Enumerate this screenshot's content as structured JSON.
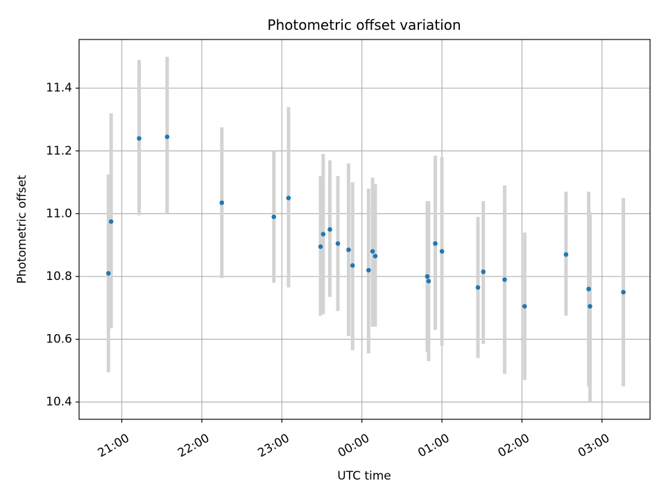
{
  "chart_data": {
    "type": "scatter",
    "title": "Photometric offset variation",
    "xlabel": "UTC time",
    "ylabel": "Photometric offset",
    "x_axis_kind": "time",
    "xlim": [
      "2000-01-01T20:28:00",
      "2000-01-02T03:36:00"
    ],
    "ylim": [
      10.345,
      11.555
    ],
    "x_ticks": [
      {
        "time": "2000-01-01T21:00:00",
        "label": "21:00"
      },
      {
        "time": "2000-01-01T22:00:00",
        "label": "22:00"
      },
      {
        "time": "2000-01-01T23:00:00",
        "label": "23:00"
      },
      {
        "time": "2000-01-02T00:00:00",
        "label": "00:00"
      },
      {
        "time": "2000-01-02T01:00:00",
        "label": "01:00"
      },
      {
        "time": "2000-01-02T02:00:00",
        "label": "02:00"
      },
      {
        "time": "2000-01-02T03:00:00",
        "label": "03:00"
      }
    ],
    "y_ticks": [
      10.4,
      10.6,
      10.8,
      11.0,
      11.2,
      11.4
    ],
    "y_tick_labels": [
      "10.4",
      "10.6",
      "10.8",
      "11.0",
      "11.2",
      "11.4"
    ],
    "grid": true,
    "marker_color": "#1f77b4",
    "errorbar_color": "#d3d3d3",
    "points": [
      {
        "x": "2000-01-01T20:50:00",
        "y": 10.81,
        "ylo": 10.495,
        "yhi": 11.125
      },
      {
        "x": "2000-01-01T20:52:00",
        "y": 10.975,
        "ylo": 10.635,
        "yhi": 11.32
      },
      {
        "x": "2000-01-01T21:13:00",
        "y": 11.24,
        "ylo": 10.995,
        "yhi": 11.49
      },
      {
        "x": "2000-01-01T21:34:00",
        "y": 11.245,
        "ylo": 11.0,
        "yhi": 11.5
      },
      {
        "x": "2000-01-01T22:15:00",
        "y": 11.035,
        "ylo": 10.795,
        "yhi": 11.275
      },
      {
        "x": "2000-01-01T22:54:00",
        "y": 10.99,
        "ylo": 10.78,
        "yhi": 11.2
      },
      {
        "x": "2000-01-01T23:05:00",
        "y": 11.05,
        "ylo": 10.765,
        "yhi": 11.34
      },
      {
        "x": "2000-01-01T23:29:00",
        "y": 10.895,
        "ylo": 10.675,
        "yhi": 11.12
      },
      {
        "x": "2000-01-01T23:31:00",
        "y": 10.935,
        "ylo": 10.68,
        "yhi": 11.19
      },
      {
        "x": "2000-01-01T23:36:00",
        "y": 10.95,
        "ylo": 10.735,
        "yhi": 11.17
      },
      {
        "x": "2000-01-01T23:42:00",
        "y": 10.905,
        "ylo": 10.69,
        "yhi": 11.12
      },
      {
        "x": "2000-01-01T23:50:00",
        "y": 10.885,
        "ylo": 10.61,
        "yhi": 11.16
      },
      {
        "x": "2000-01-01T23:53:00",
        "y": 10.835,
        "ylo": 10.565,
        "yhi": 11.1
      },
      {
        "x": "2000-01-02T00:05:00",
        "y": 10.82,
        "ylo": 10.555,
        "yhi": 11.08
      },
      {
        "x": "2000-01-02T00:08:00",
        "y": 10.88,
        "ylo": 10.64,
        "yhi": 11.115
      },
      {
        "x": "2000-01-02T00:10:00",
        "y": 10.865,
        "ylo": 10.64,
        "yhi": 11.095
      },
      {
        "x": "2000-01-02T00:49:00",
        "y": 10.8,
        "ylo": 10.56,
        "yhi": 11.04
      },
      {
        "x": "2000-01-02T00:50:00",
        "y": 10.785,
        "ylo": 10.53,
        "yhi": 11.04
      },
      {
        "x": "2000-01-02T00:55:00",
        "y": 10.905,
        "ylo": 10.63,
        "yhi": 11.185
      },
      {
        "x": "2000-01-02T01:00:00",
        "y": 10.88,
        "ylo": 10.58,
        "yhi": 11.18
      },
      {
        "x": "2000-01-02T01:27:00",
        "y": 10.765,
        "ylo": 10.54,
        "yhi": 10.99
      },
      {
        "x": "2000-01-02T01:31:00",
        "y": 10.815,
        "ylo": 10.585,
        "yhi": 11.04
      },
      {
        "x": "2000-01-02T01:47:00",
        "y": 10.79,
        "ylo": 10.49,
        "yhi": 11.09
      },
      {
        "x": "2000-01-02T02:02:00",
        "y": 10.705,
        "ylo": 10.47,
        "yhi": 10.94
      },
      {
        "x": "2000-01-02T02:33:00",
        "y": 10.87,
        "ylo": 10.675,
        "yhi": 11.07
      },
      {
        "x": "2000-01-02T02:50:00",
        "y": 10.76,
        "ylo": 10.45,
        "yhi": 11.07
      },
      {
        "x": "2000-01-02T02:51:00",
        "y": 10.705,
        "ylo": 10.4,
        "yhi": 11.005
      },
      {
        "x": "2000-01-02T03:16:00",
        "y": 10.75,
        "ylo": 10.45,
        "yhi": 11.05
      }
    ]
  }
}
